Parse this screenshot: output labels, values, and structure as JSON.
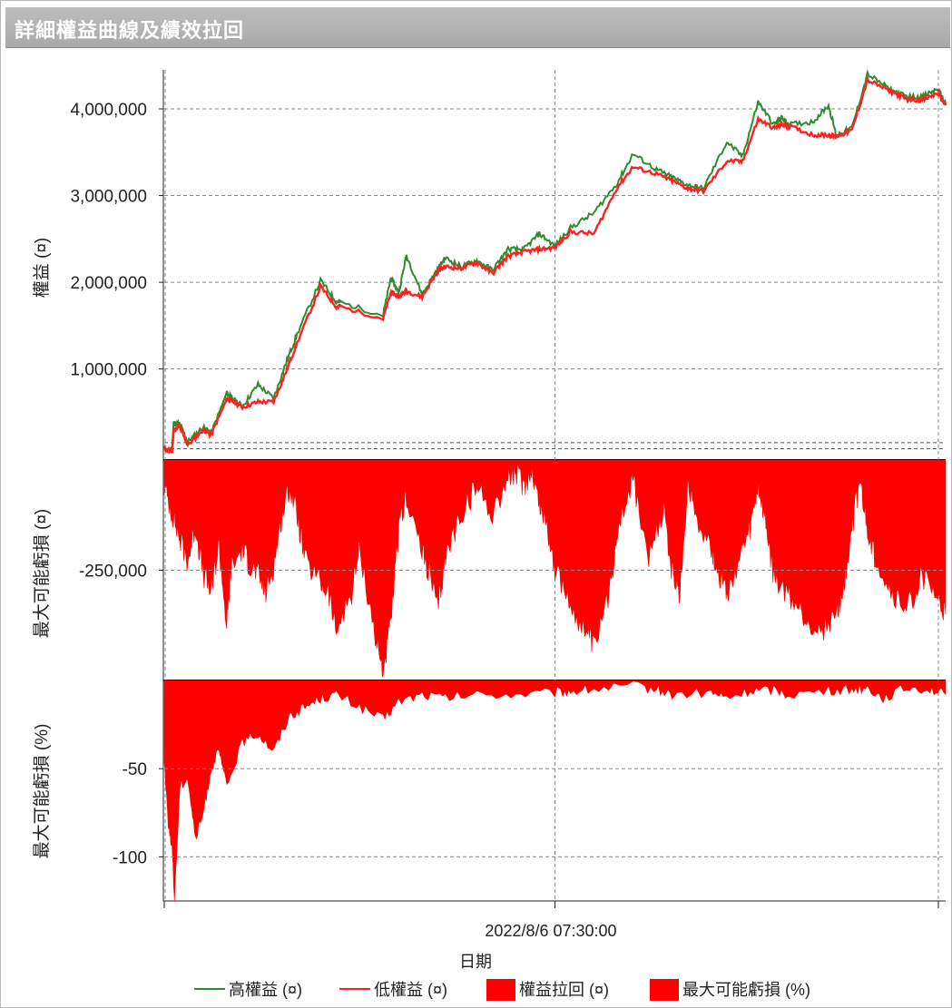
{
  "window_title": "詳細權益曲線及績效拉回",
  "colors": {
    "high_line": "#2e8b2e",
    "low_line": "#ff2020",
    "fill": "#ff0000",
    "grid": "#888888"
  },
  "chart_data": [
    {
      "type": "line",
      "panel": "equity",
      "ylabel": "權益 (¤)",
      "yticks": [
        "1,000,000",
        "2,000,000",
        "3,000,000",
        "4,000,000"
      ],
      "ylim": [
        -50000,
        4450000
      ],
      "xlim": [
        0,
        1
      ],
      "series": [
        {
          "name": "高權益 (¤)",
          "color": "#2e8b2e",
          "x": [
            0.0,
            0.01,
            0.012,
            0.02,
            0.03,
            0.05,
            0.06,
            0.08,
            0.085,
            0.1,
            0.12,
            0.14,
            0.155,
            0.17,
            0.2,
            0.22,
            0.225,
            0.28,
            0.29,
            0.3,
            0.31,
            0.33,
            0.35,
            0.36,
            0.38,
            0.4,
            0.42,
            0.44,
            0.46,
            0.48,
            0.5,
            0.52,
            0.55,
            0.58,
            0.6,
            0.63,
            0.65,
            0.67,
            0.69,
            0.72,
            0.74,
            0.76,
            0.78,
            0.79,
            0.8,
            0.83,
            0.85,
            0.86,
            0.88,
            0.9,
            0.93,
            0.95,
            0.97,
            0.99,
            1.0
          ],
          "y": [
            80000,
            60000,
            380000,
            360000,
            160000,
            330000,
            260000,
            720000,
            680000,
            570000,
            820000,
            660000,
            1050000,
            1400000,
            2020000,
            1780000,
            1770000,
            1620000,
            2050000,
            1880000,
            2310000,
            1860000,
            2160000,
            2280000,
            2180000,
            2250000,
            2140000,
            2380000,
            2380000,
            2560000,
            2420000,
            2630000,
            2800000,
            3150000,
            3480000,
            3300000,
            3210000,
            3120000,
            3080000,
            3620000,
            3450000,
            4080000,
            3820000,
            3900000,
            3820000,
            3850000,
            4040000,
            3700000,
            3780000,
            4400000,
            4220000,
            4140000,
            4140000,
            4230000,
            4060000
          ]
        },
        {
          "name": "低權益 (¤)",
          "color": "#ff2020",
          "x": [
            0.0,
            0.01,
            0.012,
            0.02,
            0.03,
            0.05,
            0.06,
            0.08,
            0.085,
            0.1,
            0.12,
            0.14,
            0.155,
            0.17,
            0.2,
            0.22,
            0.225,
            0.28,
            0.29,
            0.3,
            0.31,
            0.33,
            0.35,
            0.36,
            0.38,
            0.4,
            0.42,
            0.44,
            0.46,
            0.48,
            0.5,
            0.52,
            0.55,
            0.58,
            0.6,
            0.63,
            0.65,
            0.67,
            0.69,
            0.72,
            0.74,
            0.76,
            0.78,
            0.79,
            0.8,
            0.83,
            0.85,
            0.86,
            0.88,
            0.9,
            0.93,
            0.95,
            0.97,
            0.99,
            1.0
          ],
          "y": [
            80000,
            40000,
            300000,
            330000,
            120000,
            300000,
            240000,
            650000,
            640000,
            560000,
            620000,
            620000,
            950000,
            1300000,
            1950000,
            1720000,
            1720000,
            1580000,
            1880000,
            1840000,
            1900000,
            1830000,
            2130000,
            2180000,
            2160000,
            2230000,
            2100000,
            2300000,
            2350000,
            2380000,
            2400000,
            2580000,
            2560000,
            3100000,
            3330000,
            3250000,
            3170000,
            3080000,
            3050000,
            3400000,
            3390000,
            3880000,
            3780000,
            3820000,
            3800000,
            3700000,
            3700000,
            3680000,
            3750000,
            4330000,
            4200000,
            4110000,
            4100000,
            4180000,
            4040000
          ]
        }
      ]
    },
    {
      "type": "area",
      "panel": "drawdown",
      "ylabel": "最大可能虧損 (¤)",
      "yticks": [
        "-250,000"
      ],
      "ylim": [
        -500000,
        0
      ],
      "series": [
        {
          "name": "權益拉回 (¤)",
          "color": "#ff0000",
          "x": [
            0.0,
            0.01,
            0.02,
            0.03,
            0.04,
            0.05,
            0.06,
            0.07,
            0.08,
            0.085,
            0.1,
            0.11,
            0.12,
            0.13,
            0.14,
            0.15,
            0.16,
            0.17,
            0.18,
            0.2,
            0.21,
            0.22,
            0.24,
            0.25,
            0.27,
            0.28,
            0.29,
            0.3,
            0.31,
            0.33,
            0.34,
            0.35,
            0.36,
            0.38,
            0.4,
            0.42,
            0.44,
            0.45,
            0.46,
            0.47,
            0.48,
            0.49,
            0.5,
            0.52,
            0.54,
            0.55,
            0.57,
            0.58,
            0.6,
            0.62,
            0.64,
            0.65,
            0.66,
            0.67,
            0.68,
            0.7,
            0.71,
            0.72,
            0.74,
            0.75,
            0.76,
            0.77,
            0.78,
            0.8,
            0.82,
            0.84,
            0.86,
            0.87,
            0.88,
            0.89,
            0.9,
            0.91,
            0.93,
            0.95,
            0.97,
            0.99,
            1.0
          ],
          "y": [
            -60000,
            -120000,
            -180000,
            -230000,
            -150000,
            -260000,
            -300000,
            -190000,
            -380000,
            -250000,
            -200000,
            -240000,
            -260000,
            -300000,
            -240000,
            -130000,
            -60000,
            -120000,
            -230000,
            -280000,
            -300000,
            -390000,
            -300000,
            -200000,
            -400000,
            -480000,
            -370000,
            -160000,
            -80000,
            -210000,
            -260000,
            -340000,
            -220000,
            -120000,
            -60000,
            -120000,
            -40000,
            -30000,
            -60000,
            -20000,
            -100000,
            -150000,
            -250000,
            -330000,
            -390000,
            -430000,
            -300000,
            -150000,
            -40000,
            -230000,
            -110000,
            -260000,
            -310000,
            -50000,
            -120000,
            -200000,
            -260000,
            -300000,
            -210000,
            -160000,
            -60000,
            -150000,
            -270000,
            -310000,
            -360000,
            -390000,
            -350000,
            -290000,
            -150000,
            -50000,
            -160000,
            -220000,
            -300000,
            -340000,
            -260000,
            -320000,
            -350000
          ]
        }
      ]
    },
    {
      "type": "area",
      "panel": "drawdown_pct",
      "ylabel": "最大可能虧損 (%)",
      "yticks": [
        "-50",
        "-100"
      ],
      "ylim": [
        -125,
        0
      ],
      "series": [
        {
          "name": "最大可能虧損 (%)",
          "color": "#ff0000",
          "x": [
            0.0,
            0.005,
            0.01,
            0.013,
            0.02,
            0.03,
            0.04,
            0.05,
            0.06,
            0.07,
            0.08,
            0.1,
            0.12,
            0.14,
            0.16,
            0.18,
            0.2,
            0.22,
            0.25,
            0.28,
            0.3,
            0.33,
            0.36,
            0.4,
            0.45,
            0.5,
            0.52,
            0.55,
            0.6,
            0.63,
            0.65,
            0.7,
            0.72,
            0.75,
            0.78,
            0.8,
            0.85,
            0.88,
            0.9,
            0.92,
            0.95,
            0.98,
            1.0
          ],
          "y": [
            -45,
            -80,
            -95,
            -125,
            -60,
            -55,
            -90,
            -75,
            -50,
            -40,
            -60,
            -35,
            -30,
            -40,
            -20,
            -15,
            -10,
            -8,
            -15,
            -22,
            -12,
            -8,
            -10,
            -8,
            -8,
            -7,
            -6,
            -5,
            -3,
            -5,
            -8,
            -7,
            -10,
            -6,
            -5,
            -8,
            -6,
            -5,
            -4,
            -10,
            -4,
            -5,
            -8
          ]
        }
      ]
    }
  ],
  "x_axis": {
    "label": "日期",
    "tick_labels": [
      "2022/8/6 07:30:00"
    ]
  },
  "legend": [
    {
      "label": "高權益 (¤)",
      "kind": "line",
      "color": "#2e8b2e"
    },
    {
      "label": "低權益 (¤)",
      "kind": "line",
      "color": "#ff2020"
    },
    {
      "label": "權益拉回 (¤)",
      "kind": "box",
      "color": "#ff0000"
    },
    {
      "label": "最大可能虧損 (%)",
      "kind": "box",
      "color": "#ff0000"
    }
  ]
}
